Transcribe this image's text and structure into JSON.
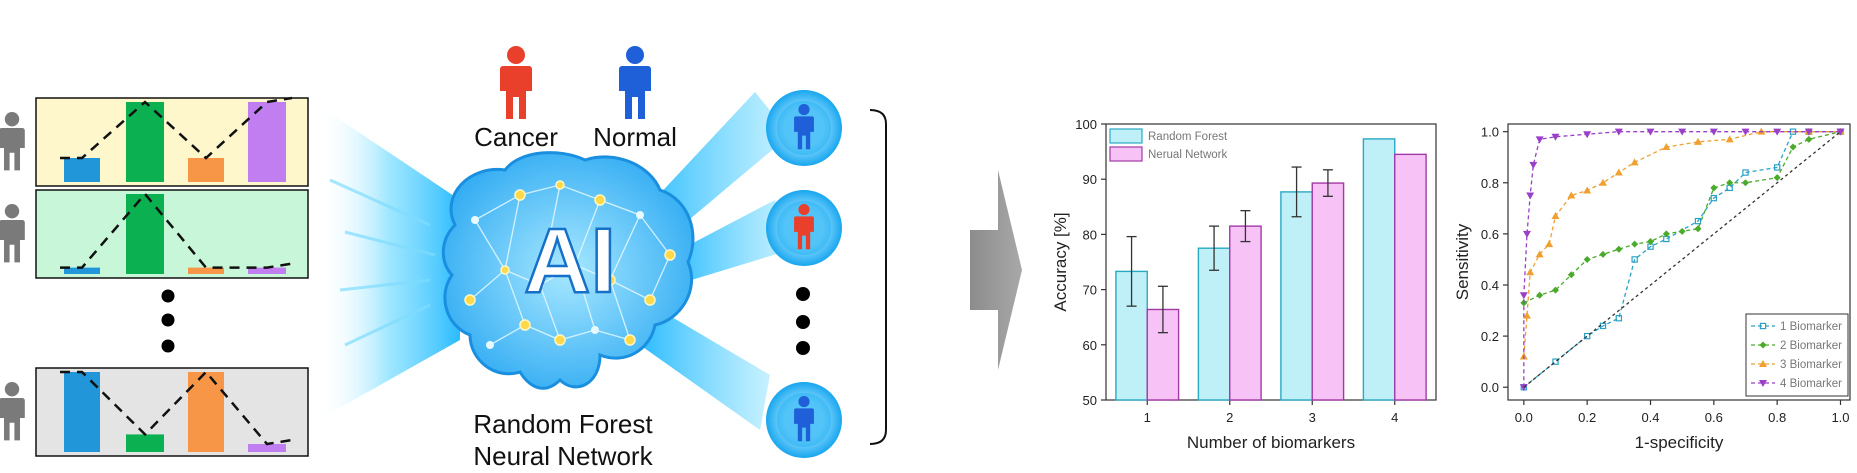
{
  "header": {
    "cancer_label": "Cancer",
    "normal_label": "Normal"
  },
  "brain": {
    "center_text": "AI",
    "model_line1": "Random Forest",
    "model_line2": "Neural Network"
  },
  "colors": {
    "cancer": "#e8402a",
    "normal": "#1f5fd8",
    "bar_blue": "#2196d8",
    "bar_green": "#0bb150",
    "bar_orange": "#f79646",
    "bar_purple": "#c07ef0",
    "random_forest": "#bff0f7",
    "neural_network": "#f7c2f5"
  },
  "input_panels": [
    {
      "bg": "#fff7cc",
      "bars": [
        0.3,
        1.0,
        0.3,
        1.0
      ],
      "colors": [
        "bar_blue",
        "bar_green",
        "bar_orange",
        "bar_purple"
      ]
    },
    {
      "bg": "#c7f7d8",
      "bars": [
        0.08,
        1.0,
        0.08,
        0.08
      ],
      "colors": [
        "bar_blue",
        "bar_green",
        "bar_orange",
        "bar_purple"
      ]
    },
    {
      "bg": "#e4e4e4",
      "bars": [
        1.0,
        0.22,
        1.0,
        0.1
      ],
      "colors": [
        "bar_blue",
        "bar_green",
        "bar_orange",
        "bar_purple"
      ]
    }
  ],
  "output_people": [
    "normal",
    "cancer",
    "normal"
  ],
  "chart_data": [
    {
      "type": "bar",
      "categories": [
        "1",
        "2",
        "3",
        "4"
      ],
      "series": [
        {
          "name": "Random Forest",
          "values": [
            73.3,
            77.5,
            87.7,
            97.3
          ],
          "errors": [
            6.3,
            4.0,
            4.5,
            0
          ],
          "color": "#bff0f7",
          "stroke": "#2aa9c4"
        },
        {
          "name": "Nerual Network",
          "values": [
            66.4,
            81.5,
            89.3,
            94.5
          ],
          "errors": [
            4.2,
            2.8,
            2.4,
            0
          ],
          "color": "#f7c2f5",
          "stroke": "#a23aa6"
        }
      ],
      "xlabel": "Number of biomarkers",
      "ylabel": "Accuracy [%]",
      "ylim": [
        50,
        100
      ],
      "yticks": [
        "50",
        "60",
        "70",
        "80",
        "90",
        "100"
      ],
      "legend_position": "top-left"
    },
    {
      "type": "line",
      "xlabel": "1-specificity",
      "ylabel": "Sensitivity",
      "xlim": [
        0,
        1
      ],
      "ylim": [
        0,
        1
      ],
      "xticks": [
        "0.0",
        "0.2",
        "0.4",
        "0.6",
        "0.8",
        "1.0"
      ],
      "yticks": [
        "0.0",
        "0.2",
        "0.4",
        "0.6",
        "0.8",
        "1.0"
      ],
      "legend_position": "bottom-right",
      "series": [
        {
          "name": "1 Biomarker",
          "color": "#2aa2c8",
          "marker": "square",
          "x": [
            0,
            0.1,
            0.2,
            0.25,
            0.3,
            0.35,
            0.4,
            0.45,
            0.55,
            0.6,
            0.65,
            0.7,
            0.8,
            0.85,
            0.9,
            1.0
          ],
          "y": [
            0,
            0.1,
            0.2,
            0.24,
            0.27,
            0.5,
            0.55,
            0.58,
            0.65,
            0.74,
            0.78,
            0.84,
            0.86,
            1.0,
            1.0,
            1.0
          ]
        },
        {
          "name": "2 Biomarker",
          "color": "#4aaa2a",
          "marker": "diamond",
          "x": [
            0,
            0.05,
            0.1,
            0.15,
            0.2,
            0.25,
            0.3,
            0.35,
            0.4,
            0.45,
            0.5,
            0.55,
            0.6,
            0.65,
            0.7,
            0.8,
            0.85,
            0.9,
            1.0
          ],
          "y": [
            0.33,
            0.36,
            0.38,
            0.44,
            0.5,
            0.52,
            0.54,
            0.56,
            0.57,
            0.6,
            0.61,
            0.62,
            0.78,
            0.8,
            0.8,
            0.82,
            0.94,
            0.97,
            1.0
          ]
        },
        {
          "name": "3 Biomarker",
          "color": "#f0a030",
          "marker": "triangle-up",
          "x": [
            0,
            0.01,
            0.02,
            0.05,
            0.08,
            0.1,
            0.15,
            0.2,
            0.25,
            0.3,
            0.35,
            0.45,
            0.55,
            0.65,
            0.75,
            0.9,
            1.0
          ],
          "y": [
            0.12,
            0.28,
            0.45,
            0.52,
            0.56,
            0.67,
            0.75,
            0.77,
            0.8,
            0.84,
            0.88,
            0.94,
            0.96,
            0.97,
            1.0,
            1.0,
            1.0
          ]
        },
        {
          "name": "4 Biomarker",
          "color": "#9a40c8",
          "marker": "triangle-down",
          "x": [
            0,
            0.0,
            0.01,
            0.02,
            0.03,
            0.05,
            0.1,
            0.2,
            0.3,
            0.4,
            0.5,
            0.6,
            0.7,
            0.8,
            0.9,
            1.0
          ],
          "y": [
            0,
            0.36,
            0.6,
            0.75,
            0.87,
            0.97,
            0.98,
            0.99,
            1.0,
            1.0,
            1.0,
            1.0,
            1.0,
            1.0,
            1.0,
            1.0
          ]
        },
        {
          "name": "",
          "color": "#333333",
          "marker": "none",
          "dashed": true,
          "x": [
            0,
            1
          ],
          "y": [
            0,
            1
          ]
        }
      ]
    }
  ]
}
